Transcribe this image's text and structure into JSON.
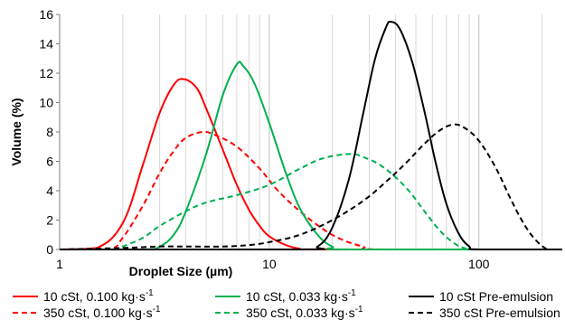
{
  "chart_data": {
    "type": "line",
    "xscale": "log",
    "xlim": [
      1,
      250
    ],
    "ylim": [
      0,
      16
    ],
    "grid": {
      "x": true,
      "y": false
    },
    "xlabel": "Droplet Size (µm)",
    "ylabel": "Volume (%)",
    "xticks": [
      {
        "value": 1,
        "label": "1"
      },
      {
        "value": 10,
        "label": "10"
      },
      {
        "value": 100,
        "label": "100"
      }
    ],
    "yticks": [
      {
        "value": 0,
        "label": "0"
      },
      {
        "value": 2,
        "label": "2"
      },
      {
        "value": 4,
        "label": "4"
      },
      {
        "value": 6,
        "label": "6"
      },
      {
        "value": 8,
        "label": "8"
      },
      {
        "value": 10,
        "label": "10"
      },
      {
        "value": 12,
        "label": "12"
      },
      {
        "value": 14,
        "label": "14"
      },
      {
        "value": 16,
        "label": "16"
      }
    ],
    "legend_placement": "bottom",
    "series": [
      {
        "name": "10 cSt, 0.100 kg·s",
        "name_sup": "-1",
        "color": "#ff0000",
        "dash": "solid",
        "points": [
          [
            1,
            0
          ],
          [
            1.5,
            0.1
          ],
          [
            2,
            1.8
          ],
          [
            2.5,
            5.8
          ],
          [
            3,
            9.3
          ],
          [
            3.5,
            11.2
          ],
          [
            3.9,
            11.6
          ],
          [
            4.5,
            11
          ],
          [
            5,
            9.6
          ],
          [
            6,
            6.8
          ],
          [
            7,
            4.4
          ],
          [
            8,
            2.7
          ],
          [
            9,
            1.6
          ],
          [
            10,
            0.9
          ],
          [
            12,
            0.3
          ],
          [
            14,
            0.05
          ],
          [
            16,
            0
          ],
          [
            250,
            0
          ]
        ]
      },
      {
        "name": "350 cSt, 0.100 kg·s",
        "name_sup": "-1",
        "color": "#ff0000",
        "dash": "dashed",
        "points": [
          [
            1,
            0
          ],
          [
            1.7,
            0
          ],
          [
            2,
            0.8
          ],
          [
            2.5,
            3
          ],
          [
            3,
            5.2
          ],
          [
            3.5,
            6.7
          ],
          [
            4,
            7.6
          ],
          [
            4.8,
            8
          ],
          [
            5.5,
            7.8
          ],
          [
            7,
            7
          ],
          [
            9,
            5.5
          ],
          [
            11,
            4
          ],
          [
            14,
            2.6
          ],
          [
            18,
            1.4
          ],
          [
            22,
            0.7
          ],
          [
            28,
            0.2
          ],
          [
            35,
            0
          ],
          [
            250,
            0
          ]
        ]
      },
      {
        "name": "10 cSt, 0.033 kg·s",
        "name_sup": "-1",
        "color": "#00b050",
        "dash": "solid",
        "points": [
          [
            1,
            0
          ],
          [
            2.5,
            0
          ],
          [
            3,
            0.2
          ],
          [
            3.5,
            1
          ],
          [
            4,
            2.6
          ],
          [
            5,
            6.5
          ],
          [
            6,
            10.5
          ],
          [
            7,
            12.6
          ],
          [
            7.5,
            12.5
          ],
          [
            8.5,
            11.3
          ],
          [
            10,
            8.6
          ],
          [
            12,
            5.2
          ],
          [
            14,
            2.8
          ],
          [
            17,
            1
          ],
          [
            20,
            0.2
          ],
          [
            24,
            0
          ],
          [
            250,
            0
          ]
        ]
      },
      {
        "name": "350 cSt, 0.033 kg·s",
        "name_sup": "-1",
        "color": "#00b050",
        "dash": "dashed",
        "points": [
          [
            1,
            0
          ],
          [
            1.8,
            0
          ],
          [
            2,
            0.2
          ],
          [
            2.5,
            0.8
          ],
          [
            3,
            1.6
          ],
          [
            4,
            2.6
          ],
          [
            5,
            3.2
          ],
          [
            7,
            3.7
          ],
          [
            10,
            4.4
          ],
          [
            14,
            5.5
          ],
          [
            18,
            6.2
          ],
          [
            24,
            6.5
          ],
          [
            28,
            6.3
          ],
          [
            35,
            5.6
          ],
          [
            45,
            4.2
          ],
          [
            55,
            2.6
          ],
          [
            65,
            1.3
          ],
          [
            75,
            0.5
          ],
          [
            85,
            0.1
          ],
          [
            100,
            0
          ],
          [
            250,
            0
          ]
        ]
      },
      {
        "name": "10 cSt Pre-emulsion",
        "color": "#000000",
        "dash": "solid",
        "points": [
          [
            1,
            0
          ],
          [
            14,
            0
          ],
          [
            17,
            0.2
          ],
          [
            20,
            1.5
          ],
          [
            24,
            4.8
          ],
          [
            28,
            9.2
          ],
          [
            32,
            13
          ],
          [
            36,
            15.1
          ],
          [
            38,
            15.5
          ],
          [
            42,
            15
          ],
          [
            48,
            12.8
          ],
          [
            55,
            9.4
          ],
          [
            62,
            6
          ],
          [
            70,
            3.1
          ],
          [
            80,
            1.1
          ],
          [
            90,
            0.2
          ],
          [
            100,
            0
          ],
          [
            250,
            0
          ]
        ]
      },
      {
        "name": "350 cSt Pre-emulsion",
        "color": "#000000",
        "dash": "dashed",
        "points": [
          [
            1,
            0
          ],
          [
            2,
            0.1
          ],
          [
            3,
            0.2
          ],
          [
            4,
            0.2
          ],
          [
            6,
            0.2
          ],
          [
            8,
            0.3
          ],
          [
            10,
            0.5
          ],
          [
            14,
            1
          ],
          [
            20,
            2
          ],
          [
            28,
            3.3
          ],
          [
            36,
            4.6
          ],
          [
            45,
            5.9
          ],
          [
            55,
            7.2
          ],
          [
            65,
            8.1
          ],
          [
            75,
            8.5
          ],
          [
            85,
            8.3
          ],
          [
            100,
            7.4
          ],
          [
            120,
            5.6
          ],
          [
            140,
            3.6
          ],
          [
            160,
            2
          ],
          [
            180,
            0.9
          ],
          [
            200,
            0.25
          ],
          [
            215,
            0
          ],
          [
            250,
            0
          ]
        ]
      }
    ]
  }
}
